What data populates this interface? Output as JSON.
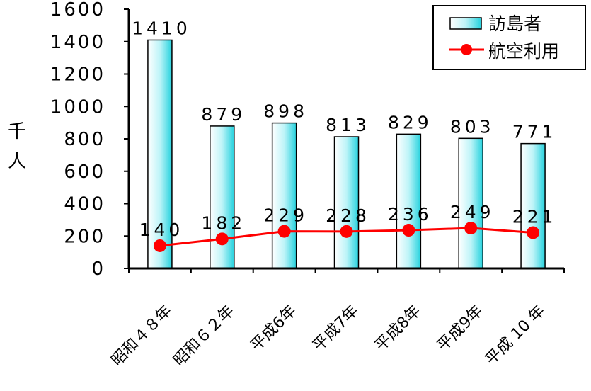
{
  "chart_data": {
    "type": "bar",
    "title": "",
    "ylabel": "千人",
    "xlabel": "",
    "ylim": [
      0,
      1600
    ],
    "yticks": [
      0,
      200,
      400,
      600,
      800,
      1000,
      1200,
      1400,
      1600
    ],
    "categories": [
      "昭和４８年",
      "昭和６２年",
      "平成6年",
      "平成7年",
      "平成8年",
      "平成9年",
      "平成 10 年"
    ],
    "series": [
      {
        "name": "訪島者",
        "type": "bar",
        "values": [
          1410,
          879,
          898,
          813,
          829,
          803,
          771
        ],
        "labels": [
          "1410",
          "879",
          "898",
          "813",
          "829",
          "803",
          "771"
        ],
        "color": "#2fd6e0"
      },
      {
        "name": "航空利用",
        "type": "line",
        "values": [
          140,
          182,
          229,
          228,
          236,
          249,
          221
        ],
        "labels": [
          "140",
          "182",
          "229",
          "228",
          "236",
          "249",
          "221"
        ],
        "color": "#ff0000"
      }
    ],
    "legend": "top-right",
    "grid": false
  }
}
